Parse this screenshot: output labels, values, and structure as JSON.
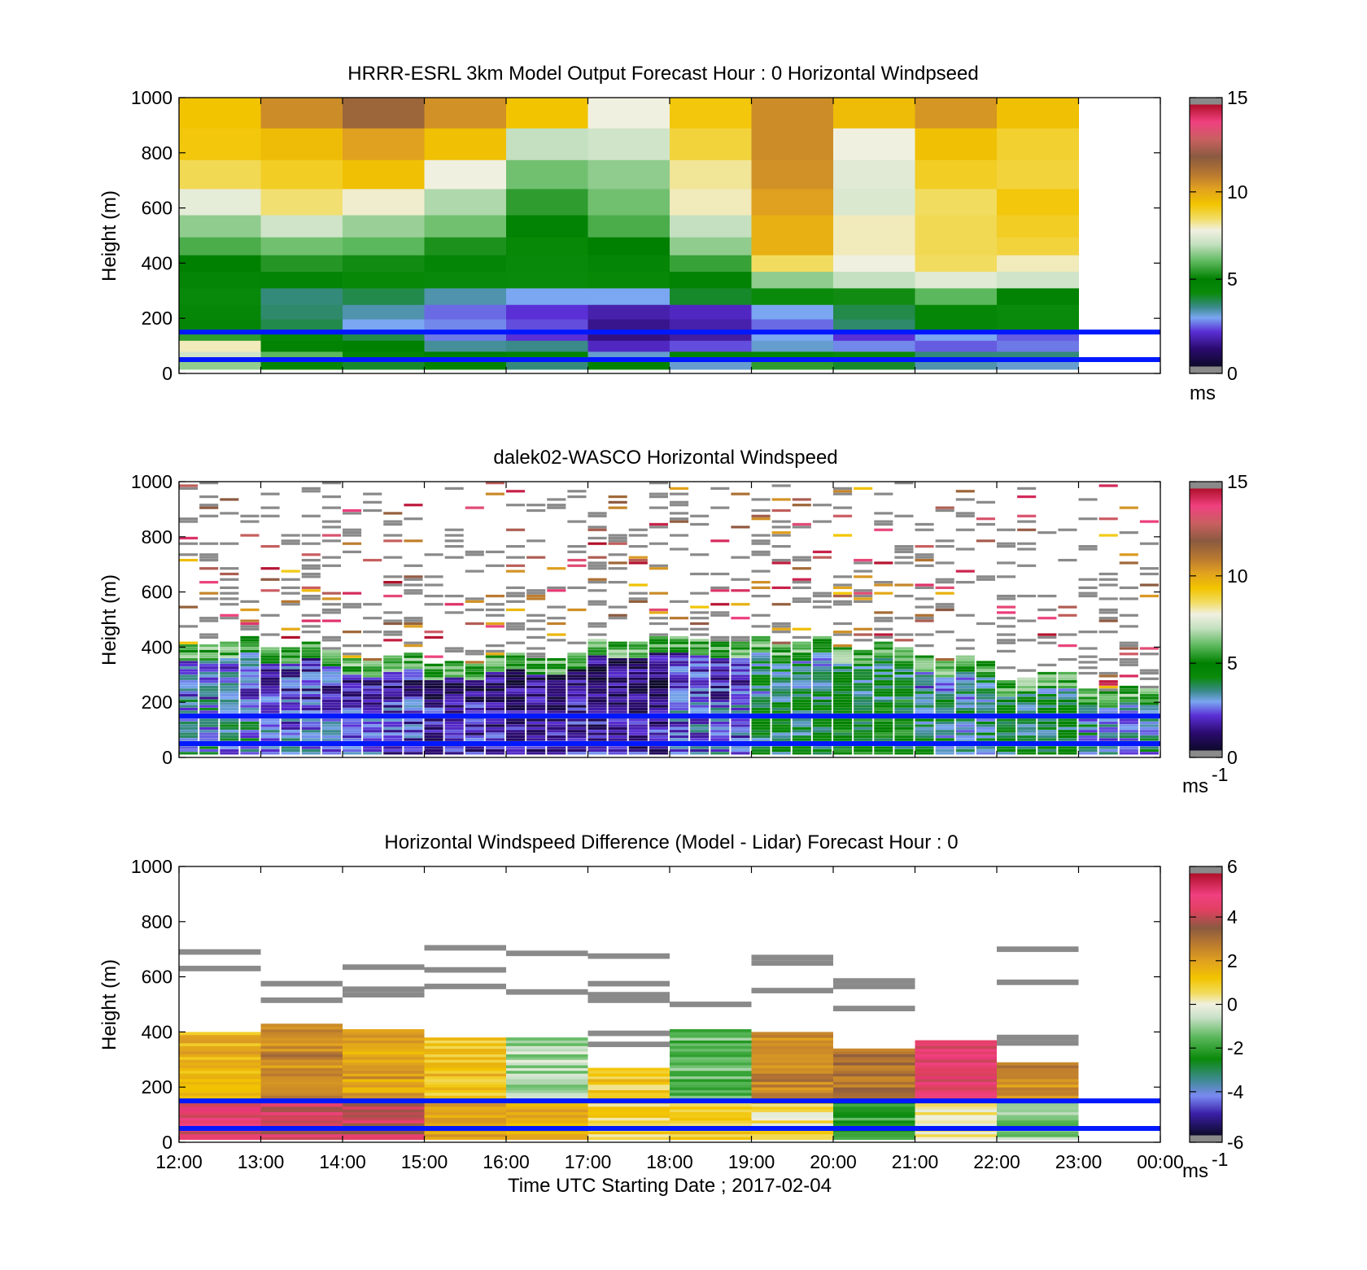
{
  "chart_data": [
    {
      "type": "heatmap",
      "title": "HRRR-ESRL 3km Model Output   Forecast Hour : 0 Horizontal Windpseed",
      "ylabel": "Height (m)",
      "xlabel": "",
      "ylim": [
        0,
        1000
      ],
      "yticks": [
        "0",
        "200",
        "400",
        "600",
        "800",
        "1000"
      ],
      "xlim": [
        "12:00",
        "00:00"
      ],
      "colorbar": {
        "min": 0,
        "max": 15,
        "ticks": [
          "0",
          "5",
          "10",
          "15"
        ],
        "unit": "ms"
      },
      "reference_lines_m": [
        150,
        50
      ],
      "x_hours": [
        "12:00",
        "13:00",
        "14:00",
        "15:00",
        "16:00",
        "17:00",
        "18:00",
        "19:00",
        "20:00",
        "21:00",
        "22:00"
      ],
      "heights_m": [
        30,
        60,
        100,
        140,
        175,
        220,
        280,
        340,
        400,
        460,
        530,
        620,
        720,
        830,
        950
      ],
      "values": [
        [
          6.5,
          4.5,
          4.0,
          4.8,
          3.5,
          4.8,
          3.0,
          5.5,
          4.0,
          3.2,
          3.0
        ],
        [
          7.2,
          6.0,
          4.5,
          5.0,
          4.8,
          3.0,
          4.6,
          4.5,
          4.2,
          3.5,
          3.5
        ],
        [
          8.0,
          4.8,
          5.0,
          3.3,
          3.4,
          1.8,
          2.2,
          3.0,
          2.6,
          2.3,
          2.5
        ],
        [
          5.5,
          4.5,
          3.8,
          2.5,
          2.0,
          1.2,
          1.5,
          2.8,
          2.0,
          2.8,
          2.3
        ],
        [
          4.6,
          3.8,
          2.8,
          2.6,
          2.2,
          1.3,
          1.6,
          2.4,
          3.6,
          4.5,
          4.2
        ],
        [
          4.5,
          3.6,
          3.2,
          2.4,
          2.0,
          1.6,
          1.8,
          2.8,
          3.8,
          4.5,
          4.2
        ],
        [
          4.3,
          3.5,
          3.8,
          3.2,
          2.8,
          2.8,
          4.0,
          4.2,
          5.2,
          6.0,
          4.8
        ],
        [
          4.6,
          4.7,
          4.4,
          4.3,
          4.2,
          4.4,
          4.8,
          6.5,
          7.0,
          7.5,
          7.2
        ],
        [
          5.0,
          5.4,
          5.2,
          4.6,
          4.3,
          4.6,
          5.6,
          8.5,
          7.8,
          8.5,
          8.0
        ],
        [
          5.8,
          6.2,
          6.0,
          5.3,
          4.4,
          5.0,
          6.5,
          9.8,
          8.0,
          8.6,
          8.8
        ],
        [
          6.5,
          7.2,
          6.6,
          6.2,
          4.8,
          5.8,
          7.0,
          9.8,
          8.0,
          8.6,
          9.0
        ],
        [
          7.6,
          8.4,
          7.9,
          6.8,
          5.5,
          6.2,
          8.0,
          10.2,
          7.4,
          8.5,
          9.2
        ],
        [
          8.6,
          9.0,
          9.4,
          7.8,
          6.2,
          6.5,
          8.2,
          10.5,
          7.5,
          9.0,
          8.8
        ],
        [
          9.2,
          9.5,
          10.2,
          9.4,
          7.0,
          7.2,
          8.8,
          10.6,
          7.8,
          9.4,
          8.9
        ],
        [
          9.3,
          10.6,
          11.6,
          10.5,
          9.3,
          7.8,
          9.2,
          10.6,
          9.5,
          10.4,
          9.4
        ]
      ]
    },
    {
      "type": "heatmap",
      "title": "dalek02-WASCO  Horizontal Windspeed",
      "ylabel": "Height (m)",
      "xlabel": "",
      "ylim": [
        0,
        1000
      ],
      "yticks": [
        "0",
        "200",
        "400",
        "600",
        "800",
        "1000"
      ],
      "xlim": [
        "12:00",
        "00:00"
      ],
      "colorbar": {
        "min": 0,
        "max": 15,
        "ticks": [
          "0",
          "5",
          "10",
          "15"
        ],
        "unit": "ms",
        "unit_exp": "-1"
      },
      "reference_lines_m": [
        150,
        50
      ],
      "x_hours_start": 12,
      "bins_per_hour": 4,
      "low_level_profile_per_hour_ms": [
        3.0,
        2.5,
        2.0,
        1.5,
        1.5,
        1.5,
        2.5,
        4.0,
        4.5,
        3.5,
        4.0,
        3.0
      ],
      "mixing_top_per_hour_m": [
        420,
        400,
        360,
        350,
        360,
        430,
        430,
        420,
        400,
        360,
        290,
        250
      ]
    },
    {
      "type": "heatmap",
      "title": "Horizontal Windspeed Difference (Model - Lidar) Forecast Hour : 0",
      "ylabel": "Height (m)",
      "xlabel": "Time UTC  Starting Date ; 2017-02-04",
      "ylim": [
        0,
        1000
      ],
      "yticks": [
        "0",
        "200",
        "400",
        "600",
        "800",
        "1000"
      ],
      "xticks": [
        "12:00",
        "13:00",
        "14:00",
        "15:00",
        "16:00",
        "17:00",
        "18:00",
        "19:00",
        "20:00",
        "21:00",
        "22:00",
        "23:00",
        "00:00"
      ],
      "colorbar": {
        "min": -6,
        "max": 6,
        "ticks": [
          "-6",
          "-4",
          "-2",
          "0",
          "2",
          "4",
          "6"
        ],
        "unit": "ms",
        "unit_exp": "-1"
      },
      "reference_lines_m": [
        150,
        50
      ],
      "x_hours": [
        "12:00",
        "13:00",
        "14:00",
        "15:00",
        "16:00",
        "17:00",
        "18:00",
        "19:00",
        "20:00",
        "21:00",
        "22:00"
      ],
      "column_tops_m": [
        400,
        425,
        405,
        375,
        375,
        265,
        410,
        400,
        335,
        365,
        290
      ],
      "values_below_150m": [
        4.5,
        4.2,
        4.0,
        2.0,
        1.5,
        0.8,
        0.8,
        0.5,
        -2.0,
        0.5,
        -1.0
      ],
      "values_above_150m": [
        1.5,
        2.5,
        2.0,
        1.2,
        -0.8,
        1.0,
        -1.5,
        2.5,
        3.0,
        4.5,
        2.5
      ]
    }
  ]
}
